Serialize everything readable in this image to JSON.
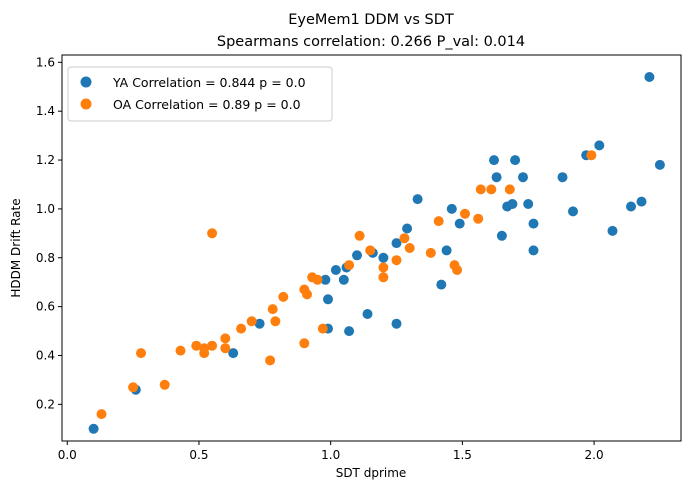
{
  "chart_data": {
    "type": "scatter",
    "title": "EyeMem1 DDM vs SDT",
    "subtitle": "Spearmans correlation: 0.266 P_val: 0.014",
    "xlabel": "SDT dprime",
    "ylabel": "HDDM Drift Rate",
    "xlim": [
      -0.02,
      2.33
    ],
    "ylim": [
      0.05,
      1.63
    ],
    "xticks": [
      "0.0",
      "0.5",
      "1.0",
      "1.5",
      "2.0"
    ],
    "yticks": [
      "0.2",
      "0.4",
      "0.6",
      "0.8",
      "1.0",
      "1.2",
      "1.4",
      "1.6"
    ],
    "grid": false,
    "legend_position": "upper-left",
    "series": [
      {
        "name": "YA Correlation = 0.844 p = 0.0",
        "color": "#1f77b4",
        "points": [
          [
            0.1,
            0.1
          ],
          [
            0.26,
            0.26
          ],
          [
            0.63,
            0.41
          ],
          [
            0.73,
            0.53
          ],
          [
            0.98,
            0.71
          ],
          [
            0.99,
            0.63
          ],
          [
            0.99,
            0.51
          ],
          [
            1.02,
            0.75
          ],
          [
            1.05,
            0.71
          ],
          [
            1.06,
            0.76
          ],
          [
            1.07,
            0.5
          ],
          [
            1.1,
            0.81
          ],
          [
            1.14,
            0.57
          ],
          [
            1.16,
            0.82
          ],
          [
            1.2,
            0.8
          ],
          [
            1.25,
            0.53
          ],
          [
            1.25,
            0.86
          ],
          [
            1.29,
            0.92
          ],
          [
            1.33,
            1.04
          ],
          [
            1.42,
            0.69
          ],
          [
            1.44,
            0.83
          ],
          [
            1.46,
            1.0
          ],
          [
            1.49,
            0.94
          ],
          [
            1.62,
            1.2
          ],
          [
            1.63,
            1.13
          ],
          [
            1.65,
            0.89
          ],
          [
            1.67,
            1.01
          ],
          [
            1.69,
            1.02
          ],
          [
            1.7,
            1.2
          ],
          [
            1.73,
            1.13
          ],
          [
            1.75,
            1.02
          ],
          [
            1.77,
            0.94
          ],
          [
            1.77,
            0.83
          ],
          [
            1.88,
            1.13
          ],
          [
            1.92,
            0.99
          ],
          [
            1.97,
            1.22
          ],
          [
            2.02,
            1.26
          ],
          [
            2.07,
            0.91
          ],
          [
            2.14,
            1.01
          ],
          [
            2.18,
            1.03
          ],
          [
            2.21,
            1.54
          ],
          [
            2.25,
            1.18
          ]
        ]
      },
      {
        "name": "OA Correlation = 0.89 p = 0.0",
        "color": "#ff7f0e",
        "points": [
          [
            0.13,
            0.16
          ],
          [
            0.25,
            0.27
          ],
          [
            0.28,
            0.41
          ],
          [
            0.37,
            0.28
          ],
          [
            0.43,
            0.42
          ],
          [
            0.49,
            0.44
          ],
          [
            0.52,
            0.41
          ],
          [
            0.52,
            0.43
          ],
          [
            0.55,
            0.44
          ],
          [
            0.55,
            0.9
          ],
          [
            0.6,
            0.47
          ],
          [
            0.6,
            0.43
          ],
          [
            0.66,
            0.51
          ],
          [
            0.7,
            0.54
          ],
          [
            0.77,
            0.38
          ],
          [
            0.78,
            0.59
          ],
          [
            0.79,
            0.54
          ],
          [
            0.82,
            0.64
          ],
          [
            0.9,
            0.67
          ],
          [
            0.9,
            0.45
          ],
          [
            0.91,
            0.65
          ],
          [
            0.93,
            0.72
          ],
          [
            0.95,
            0.71
          ],
          [
            0.97,
            0.51
          ],
          [
            1.07,
            0.77
          ],
          [
            1.11,
            0.89
          ],
          [
            1.15,
            0.83
          ],
          [
            1.2,
            0.76
          ],
          [
            1.2,
            0.72
          ],
          [
            1.25,
            0.79
          ],
          [
            1.28,
            0.88
          ],
          [
            1.3,
            0.84
          ],
          [
            1.38,
            0.82
          ],
          [
            1.41,
            0.95
          ],
          [
            1.47,
            0.77
          ],
          [
            1.48,
            0.75
          ],
          [
            1.51,
            0.98
          ],
          [
            1.56,
            0.96
          ],
          [
            1.57,
            1.08
          ],
          [
            1.61,
            1.08
          ],
          [
            1.68,
            1.08
          ],
          [
            1.99,
            1.22
          ]
        ]
      }
    ]
  }
}
